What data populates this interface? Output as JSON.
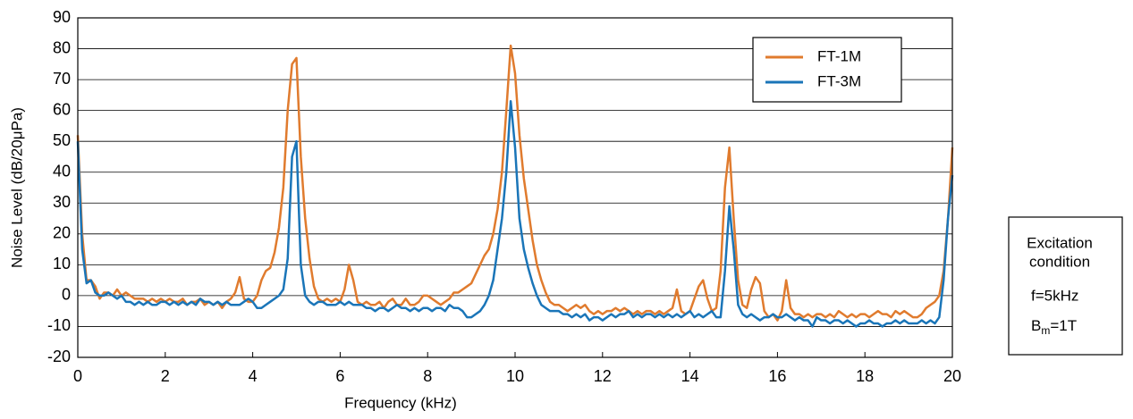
{
  "chart_data": {
    "type": "line",
    "xlabel": "Frequency (kHz)",
    "ylabel": "Noise Level (dB/20μPa)",
    "xlim": [
      0,
      20
    ],
    "ylim": [
      -20,
      90
    ],
    "xticks": [
      0,
      2,
      4,
      6,
      8,
      10,
      12,
      14,
      16,
      18,
      20
    ],
    "yticks": [
      -20,
      -10,
      0,
      10,
      20,
      30,
      40,
      50,
      60,
      70,
      80,
      90
    ],
    "grid": true,
    "legend": "upper right",
    "x": [
      0,
      0.1,
      0.2,
      0.3,
      0.4,
      0.5,
      0.6,
      0.7,
      0.8,
      0.9,
      1,
      1.1,
      1.2,
      1.3,
      1.4,
      1.5,
      1.6,
      1.7,
      1.8,
      1.9,
      2,
      2.1,
      2.2,
      2.3,
      2.4,
      2.5,
      2.6,
      2.7,
      2.8,
      2.9,
      3,
      3.1,
      3.2,
      3.3,
      3.4,
      3.5,
      3.6,
      3.7,
      3.8,
      3.9,
      4,
      4.1,
      4.2,
      4.3,
      4.4,
      4.5,
      4.6,
      4.7,
      4.8,
      4.9,
      5,
      5.1,
      5.2,
      5.3,
      5.4,
      5.5,
      5.6,
      5.7,
      5.8,
      5.9,
      6,
      6.1,
      6.2,
      6.3,
      6.4,
      6.5,
      6.6,
      6.7,
      6.8,
      6.9,
      7,
      7.1,
      7.2,
      7.3,
      7.4,
      7.5,
      7.6,
      7.7,
      7.8,
      7.9,
      8,
      8.1,
      8.2,
      8.3,
      8.4,
      8.5,
      8.6,
      8.7,
      8.8,
      8.9,
      9,
      9.1,
      9.2,
      9.3,
      9.4,
      9.5,
      9.6,
      9.7,
      9.8,
      9.9,
      10,
      10.1,
      10.2,
      10.3,
      10.4,
      10.5,
      10.6,
      10.7,
      10.8,
      10.9,
      11,
      11.1,
      11.2,
      11.3,
      11.4,
      11.5,
      11.6,
      11.7,
      11.8,
      11.9,
      12,
      12.1,
      12.2,
      12.3,
      12.4,
      12.5,
      12.6,
      12.7,
      12.8,
      12.9,
      13,
      13.1,
      13.2,
      13.3,
      13.4,
      13.5,
      13.6,
      13.7,
      13.8,
      13.9,
      14,
      14.1,
      14.2,
      14.3,
      14.4,
      14.5,
      14.6,
      14.7,
      14.8,
      14.9,
      15,
      15.1,
      15.2,
      15.3,
      15.4,
      15.5,
      15.6,
      15.7,
      15.8,
      15.9,
      16,
      16.1,
      16.2,
      16.3,
      16.4,
      16.5,
      16.6,
      16.7,
      16.8,
      16.9,
      17,
      17.1,
      17.2,
      17.3,
      17.4,
      17.5,
      17.6,
      17.7,
      17.8,
      17.9,
      18,
      18.1,
      18.2,
      18.3,
      18.4,
      18.5,
      18.6,
      18.7,
      18.8,
      18.9,
      19,
      19.1,
      19.2,
      19.3,
      19.4,
      19.5,
      19.6,
      19.7,
      19.8,
      19.9,
      20
    ],
    "series": [
      {
        "name": "FT-1M",
        "color": "#e07b2e",
        "values": [
          52,
          20,
          5,
          5,
          3,
          -1,
          1,
          1,
          0,
          2,
          0,
          1,
          0,
          -1,
          -1,
          -1,
          -2,
          -1,
          -2,
          -1,
          -2,
          -1,
          -2,
          -2,
          -1,
          -3,
          -2,
          -2,
          -1,
          -3,
          -2,
          -3,
          -2,
          -4,
          -2,
          -1,
          1,
          6,
          -1,
          -2,
          -2,
          0,
          5,
          8,
          9,
          14,
          22,
          35,
          60,
          75,
          77,
          45,
          25,
          12,
          3,
          -1,
          -2,
          -1,
          -2,
          -1,
          -2,
          2,
          10,
          5,
          -2,
          -3,
          -2,
          -3,
          -3,
          -2,
          -4,
          -2,
          -1,
          -3,
          -3,
          -1,
          -3,
          -3,
          -2,
          0,
          0,
          -1,
          -2,
          -3,
          -2,
          -1,
          1,
          1,
          2,
          3,
          4,
          7,
          10,
          13,
          15,
          20,
          28,
          40,
          60,
          81,
          72,
          52,
          38,
          28,
          18,
          10,
          5,
          1,
          -2,
          -3,
          -3,
          -4,
          -5,
          -4,
          -3,
          -4,
          -3,
          -5,
          -6,
          -5,
          -6,
          -5,
          -5,
          -4,
          -5,
          -4,
          -5,
          -6,
          -5,
          -6,
          -5,
          -5,
          -6,
          -5,
          -6,
          -5,
          -4,
          2,
          -5,
          -6,
          -5,
          -1,
          3,
          5,
          -1,
          -5,
          -4,
          8,
          35,
          48,
          25,
          5,
          -3,
          -4,
          2,
          6,
          4,
          -5,
          -7,
          -6,
          -8,
          -5,
          5,
          -4,
          -6,
          -6,
          -7,
          -6,
          -7,
          -6,
          -6,
          -7,
          -6,
          -7,
          -5,
          -6,
          -7,
          -6,
          -7,
          -6,
          -6,
          -7,
          -6,
          -5,
          -6,
          -6,
          -7,
          -5,
          -6,
          -5,
          -6,
          -7,
          -7,
          -6,
          -4,
          -3,
          -2,
          0,
          8,
          25,
          48
        ]
      },
      {
        "name": "FT-3M",
        "color": "#1a75b8",
        "values": [
          50,
          15,
          4,
          5,
          1,
          0,
          0,
          1,
          0,
          -1,
          0,
          -2,
          -2,
          -3,
          -2,
          -3,
          -2,
          -3,
          -3,
          -2,
          -2,
          -3,
          -2,
          -3,
          -2,
          -3,
          -2,
          -3,
          -1,
          -2,
          -2,
          -3,
          -2,
          -3,
          -2,
          -3,
          -3,
          -3,
          -2,
          -1,
          -2,
          -4,
          -4,
          -3,
          -2,
          -1,
          0,
          2,
          12,
          45,
          50,
          10,
          0,
          -2,
          -3,
          -2,
          -2,
          -3,
          -3,
          -3,
          -2,
          -3,
          -2,
          -3,
          -3,
          -3,
          -4,
          -4,
          -5,
          -4,
          -4,
          -5,
          -4,
          -3,
          -4,
          -4,
          -5,
          -4,
          -5,
          -4,
          -4,
          -5,
          -4,
          -4,
          -5,
          -3,
          -4,
          -4,
          -5,
          -7,
          -7,
          -6,
          -5,
          -3,
          0,
          5,
          15,
          25,
          40,
          63,
          48,
          25,
          15,
          9,
          4,
          0,
          -3,
          -4,
          -5,
          -5,
          -5,
          -6,
          -6,
          -7,
          -6,
          -7,
          -6,
          -8,
          -7,
          -7,
          -8,
          -7,
          -6,
          -7,
          -6,
          -6,
          -5,
          -7,
          -6,
          -7,
          -6,
          -6,
          -7,
          -6,
          -7,
          -6,
          -7,
          -6,
          -7,
          -6,
          -5,
          -7,
          -6,
          -7,
          -6,
          -5,
          -7,
          -7,
          8,
          29,
          15,
          -3,
          -6,
          -7,
          -6,
          -7,
          -8,
          -7,
          -7,
          -6,
          -7,
          -7,
          -6,
          -7,
          -8,
          -7,
          -8,
          -8,
          -10,
          -7,
          -8,
          -8,
          -9,
          -8,
          -8,
          -9,
          -8,
          -9,
          -10,
          -9,
          -9,
          -8,
          -9,
          -9,
          -10,
          -9,
          -9,
          -8,
          -9,
          -8,
          -9,
          -9,
          -9,
          -8,
          -9,
          -8,
          -9,
          -7,
          5,
          25,
          39
        ]
      }
    ],
    "annotation": {
      "lines": [
        "Excitation",
        "condition",
        "f=5kHz"
      ],
      "subscript_line": {
        "base": "B",
        "sub": "m",
        "rest": "=1T"
      }
    }
  }
}
